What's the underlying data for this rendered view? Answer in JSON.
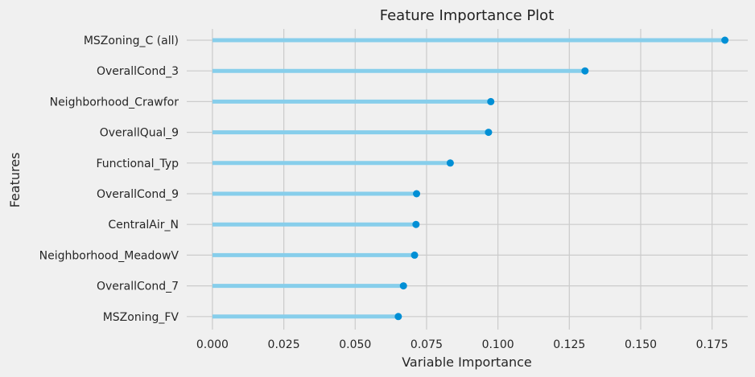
{
  "chart_data": {
    "type": "lollipop",
    "title": "Feature Importance Plot",
    "xlabel": "Variable Importance",
    "ylabel": "Features",
    "categories": [
      "MSZoning_C (all)",
      "OverallCond_3",
      "Neighborhood_Crawfor",
      "OverallQual_9",
      "Functional_Typ",
      "OverallCond_9",
      "CentralAir_N",
      "Neighborhood_MeadowV",
      "OverallCond_7",
      "MSZoning_FV"
    ],
    "values": [
      0.1795,
      0.1305,
      0.0975,
      0.0967,
      0.0833,
      0.0715,
      0.0713,
      0.0708,
      0.0669,
      0.0651
    ],
    "xlim": [
      -0.009,
      0.1875
    ],
    "xticks": [
      0.0,
      0.025,
      0.05,
      0.075,
      0.1,
      0.125,
      0.15,
      0.175
    ],
    "xtick_labels": [
      "0.000",
      "0.025",
      "0.050",
      "0.075",
      "0.100",
      "0.125",
      "0.150",
      "0.175"
    ],
    "grid": true,
    "colors": {
      "background": "#f0f0f0",
      "grid": "#cbcbcb",
      "stem": "#87ceeb",
      "marker": "#008fd5",
      "text": "#262626"
    }
  }
}
